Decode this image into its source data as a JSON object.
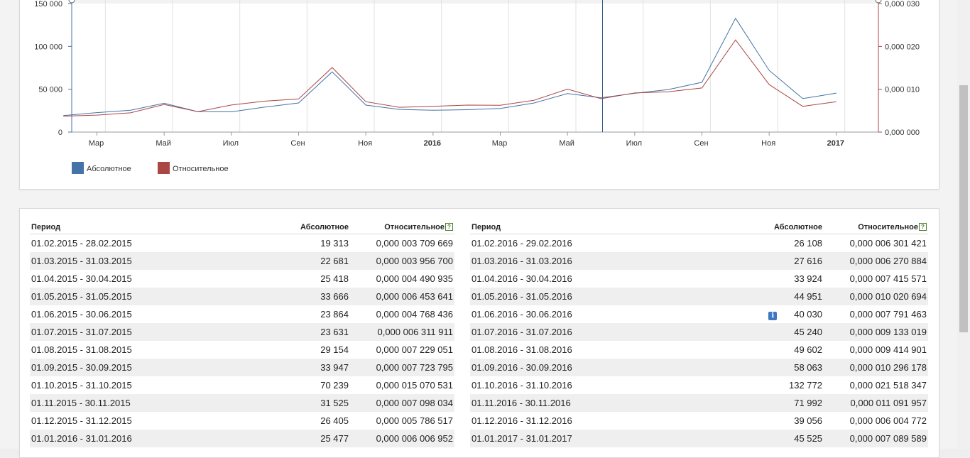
{
  "chart": {
    "left_axis_ticks": [
      "0",
      "50 000",
      "100 000",
      "150 000"
    ],
    "right_axis_ticks": [
      "0,000 000",
      "0,000 010",
      "0,000 020",
      "0,000 030"
    ],
    "x_tick_labels": [
      "Мар",
      "Май",
      "Июл",
      "Сен",
      "Ноя",
      "2016",
      "Мар",
      "Май",
      "Июл",
      "Сен",
      "Ноя",
      "2017"
    ],
    "legend": [
      {
        "label": "Абсолютное",
        "color": "#4572a7"
      },
      {
        "label": "Относительное",
        "color": "#aa4643"
      }
    ]
  },
  "chart_data": {
    "type": "line",
    "x": [
      "2015-02",
      "2015-03",
      "2015-04",
      "2015-05",
      "2015-06",
      "2015-07",
      "2015-08",
      "2015-09",
      "2015-10",
      "2015-11",
      "2015-12",
      "2016-01",
      "2016-02",
      "2016-03",
      "2016-04",
      "2016-05",
      "2016-06",
      "2016-07",
      "2016-08",
      "2016-09",
      "2016-10",
      "2016-11",
      "2016-12",
      "2017-01"
    ],
    "series": [
      {
        "name": "Абсолютное",
        "axis": "left",
        "color": "#4572a7",
        "values": [
          19313,
          22681,
          25418,
          33666,
          23864,
          23631,
          29154,
          33947,
          70239,
          31525,
          26405,
          25477,
          26108,
          27616,
          33924,
          44951,
          40030,
          45240,
          49602,
          58063,
          132772,
          71992,
          39056,
          45525
        ]
      },
      {
        "name": "Относительное",
        "axis": "right",
        "color": "#aa4643",
        "values": [
          3.709669e-06,
          3.9567e-06,
          4.490935e-06,
          6.453641e-06,
          4.768436e-06,
          6.311911e-06,
          7.229051e-06,
          7.723795e-06,
          1.5070531e-05,
          7.098034e-06,
          5.786517e-06,
          6.006952e-06,
          6.301421e-06,
          6.270884e-06,
          7.415571e-06,
          1.0020694e-05,
          7.791463e-06,
          9.133019e-06,
          9.414901e-06,
          1.0296178e-05,
          2.1518347e-05,
          1.1091957e-05,
          6.004772e-06,
          7.089589e-06
        ]
      }
    ],
    "ylim_left": [
      0,
      150000
    ],
    "ylim_right": [
      0,
      3e-05
    ],
    "x_tick_labels": [
      "Мар",
      "Май",
      "Июл",
      "Сен",
      "Ноя",
      "2016",
      "Мар",
      "Май",
      "Июл",
      "Сен",
      "Ноя",
      "2017"
    ],
    "grid": "vertical",
    "legend_position": "bottom-left",
    "marker_date": "2016-06"
  },
  "table": {
    "headers": {
      "period": "Период",
      "absolute": "Абсолютное",
      "relative": "Относительное",
      "help": "?"
    },
    "info_icon": "i",
    "left_rows": [
      {
        "period": "01.02.2015 - 28.02.2015",
        "abs": "19 313",
        "rel": "0,000 003 709 669"
      },
      {
        "period": "01.03.2015 - 31.03.2015",
        "abs": "22 681",
        "rel": "0,000 003 956 700"
      },
      {
        "period": "01.04.2015 - 30.04.2015",
        "abs": "25 418",
        "rel": "0,000 004 490 935"
      },
      {
        "period": "01.05.2015 - 31.05.2015",
        "abs": "33 666",
        "rel": "0,000 006 453 641"
      },
      {
        "period": "01.06.2015 - 30.06.2015",
        "abs": "23 864",
        "rel": "0,000 004 768 436"
      },
      {
        "period": "01.07.2015 - 31.07.2015",
        "abs": "23 631",
        "rel": "0,000 006 311 911"
      },
      {
        "period": "01.08.2015 - 31.08.2015",
        "abs": "29 154",
        "rel": "0,000 007 229 051"
      },
      {
        "period": "01.09.2015 - 30.09.2015",
        "abs": "33 947",
        "rel": "0,000 007 723 795"
      },
      {
        "period": "01.10.2015 - 31.10.2015",
        "abs": "70 239",
        "rel": "0,000 015 070 531"
      },
      {
        "period": "01.11.2015 - 30.11.2015",
        "abs": "31 525",
        "rel": "0,000 007 098 034"
      },
      {
        "period": "01.12.2015 - 31.12.2015",
        "abs": "26 405",
        "rel": "0,000 005 786 517"
      },
      {
        "period": "01.01.2016 - 31.01.2016",
        "abs": "25 477",
        "rel": "0,000 006 006 952"
      }
    ],
    "right_rows": [
      {
        "period": "01.02.2016 - 29.02.2016",
        "abs": "26 108",
        "rel": "0,000 006 301 421"
      },
      {
        "period": "01.03.2016 - 31.03.2016",
        "abs": "27 616",
        "rel": "0,000 006 270 884"
      },
      {
        "period": "01.04.2016 - 30.04.2016",
        "abs": "33 924",
        "rel": "0,000 007 415 571"
      },
      {
        "period": "01.05.2016 - 31.05.2016",
        "abs": "44 951",
        "rel": "0,000 010 020 694"
      },
      {
        "period": "01.06.2016 - 30.06.2016",
        "abs": "40 030",
        "rel": "0,000 007 791 463",
        "info": true
      },
      {
        "period": "01.07.2016 - 31.07.2016",
        "abs": "45 240",
        "rel": "0,000 009 133 019"
      },
      {
        "period": "01.08.2016 - 31.08.2016",
        "abs": "49 602",
        "rel": "0,000 009 414 901"
      },
      {
        "period": "01.09.2016 - 30.09.2016",
        "abs": "58 063",
        "rel": "0,000 010 296 178"
      },
      {
        "period": "01.10.2016 - 31.10.2016",
        "abs": "132 772",
        "rel": "0,000 021 518 347"
      },
      {
        "period": "01.11.2016 - 30.11.2016",
        "abs": "71 992",
        "rel": "0,000 011 091 957"
      },
      {
        "period": "01.12.2016 - 31.12.2016",
        "abs": "39 056",
        "rel": "0,000 006 004 772"
      },
      {
        "period": "01.01.2017 - 31.01.2017",
        "abs": "45 525",
        "rel": "0,000 007 089 589"
      }
    ]
  }
}
